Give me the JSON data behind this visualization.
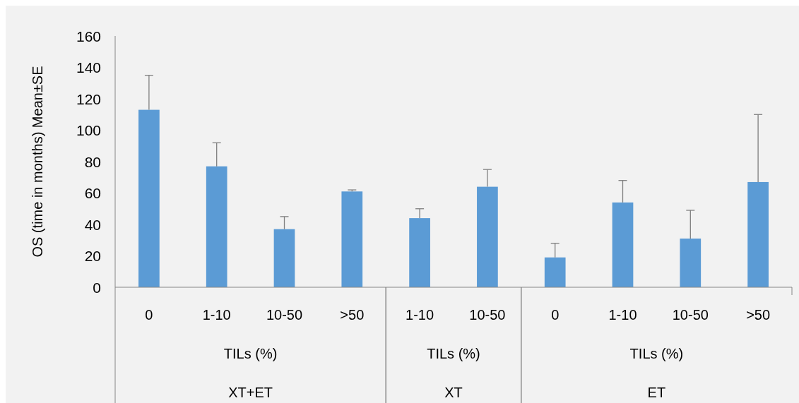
{
  "chart_data": [
    {
      "type": "bar",
      "ylabel": "OS (time in months) Mean±SE",
      "xlabel": "TILs (%)",
      "annotations": [
        "XT+ET"
      ],
      "categories": [
        "0",
        "1-10",
        "10-50",
        ">50"
      ],
      "values": [
        113,
        77,
        37,
        61
      ],
      "errors": [
        [
          113,
          135
        ],
        [
          77,
          92
        ],
        [
          37,
          45
        ],
        [
          61,
          62
        ]
      ],
      "color": "#5b9bd5",
      "ylim": [
        0,
        160
      ],
      "yticks": [
        0,
        20,
        40,
        60,
        80,
        100,
        120,
        140,
        160
      ],
      "grid": false
    },
    {
      "type": "bar",
      "xlabel": "TILs (%)",
      "annotations": [
        "XT"
      ],
      "categories": [
        "1-10",
        "10-50"
      ],
      "values": [
        44,
        64
      ],
      "errors": [
        [
          44,
          50
        ],
        [
          64,
          75
        ]
      ],
      "color": "#5b9bd5",
      "ylim": [
        0,
        160
      ],
      "tick_labels": "x",
      "grid": false
    },
    {
      "type": "bar",
      "xlabel": "TILs (%)",
      "annotations": [
        "ET"
      ],
      "categories": [
        "0",
        "1-10",
        "10-50",
        ">50"
      ],
      "values": [
        19,
        54,
        31,
        67
      ],
      "errors": [
        [
          19,
          28
        ],
        [
          54,
          68
        ],
        [
          31,
          49
        ],
        [
          67,
          110
        ]
      ],
      "color": "#5b9bd5",
      "ylim": [
        0,
        160
      ],
      "tick_labels": "x",
      "grid": false
    }
  ]
}
